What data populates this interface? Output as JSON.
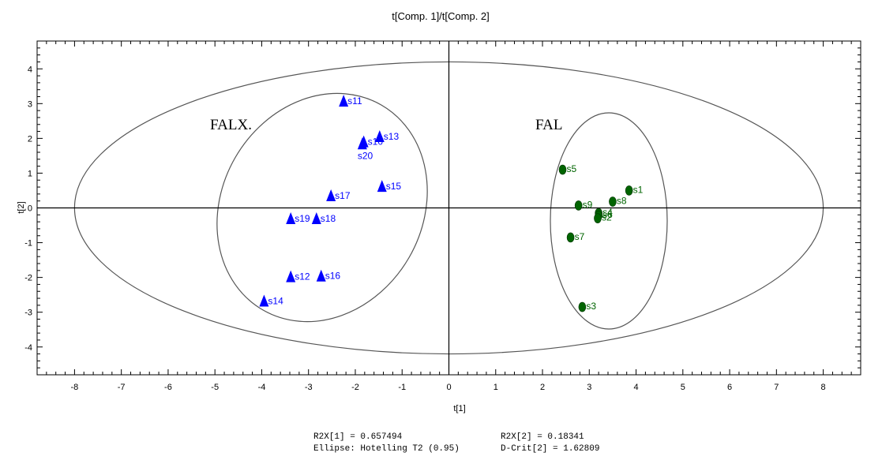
{
  "chart_data": {
    "type": "scatter",
    "title": "t[Comp. 1]/t[Comp. 2]",
    "xlabel": "t[1]",
    "ylabel": "t[2]",
    "xlim": [
      -8.8,
      8.8
    ],
    "ylim": [
      -4.8,
      4.8
    ],
    "x_ticks": [
      -8,
      -7,
      -6,
      -5,
      -4,
      -3,
      -2,
      -1,
      0,
      1,
      2,
      3,
      4,
      5,
      6,
      7,
      8
    ],
    "y_ticks": [
      4,
      3,
      2,
      1,
      0,
      -1,
      -2,
      -3,
      -4
    ],
    "grid": false,
    "colors": {
      "FALX": "#0000ff",
      "FAL": "#006400",
      "ellipse": "#555555"
    },
    "series": [
      {
        "marker": "triangle",
        "color": "#0000ff",
        "points": [
          {
            "label": "s11",
            "x": -2.25,
            "y": 3.05
          },
          {
            "label": "s10",
            "x": -1.82,
            "y": 1.88
          },
          {
            "label": "s20",
            "x": -1.85,
            "y": 1.82
          },
          {
            "label": "s13",
            "x": -1.48,
            "y": 2.03
          },
          {
            "label": "s15",
            "x": -1.43,
            "y": 0.6
          },
          {
            "label": "s17",
            "x": -2.52,
            "y": 0.33
          },
          {
            "label": "s19",
            "x": -3.38,
            "y": -0.33
          },
          {
            "label": "s18",
            "x": -2.83,
            "y": -0.33
          },
          {
            "label": "s12",
            "x": -3.38,
            "y": -2.0
          },
          {
            "label": "s16",
            "x": -2.73,
            "y": -1.98
          },
          {
            "label": "s14",
            "x": -3.95,
            "y": -2.7
          }
        ]
      },
      {
        "marker": "circle",
        "color": "#006400",
        "points": [
          {
            "label": "s5",
            "x": 2.43,
            "y": 1.1
          },
          {
            "label": "s1",
            "x": 3.85,
            "y": 0.5
          },
          {
            "label": "s8",
            "x": 3.5,
            "y": 0.18
          },
          {
            "label": "s9",
            "x": 2.77,
            "y": 0.07
          },
          {
            "label": "s4",
            "x": 3.2,
            "y": -0.15
          },
          {
            "label": "s6",
            "x": 3.2,
            "y": -0.22
          },
          {
            "label": "s2",
            "x": 3.18,
            "y": -0.3
          },
          {
            "label": "s7",
            "x": 2.6,
            "y": -0.85
          },
          {
            "label": "s3",
            "x": 2.85,
            "y": -2.85
          }
        ]
      }
    ],
    "annotations": {
      "group_FALX": "FALX.",
      "group_FAL": "FAL"
    },
    "footer": {
      "r2x1": "R2X[1] = 0.657494",
      "r2x2": "R2X[2] = 0.18341",
      "ellipse": "Ellipse: Hotelling T2 (0.95)",
      "dcrit": "D-Crit[2] = 1.62809"
    }
  }
}
